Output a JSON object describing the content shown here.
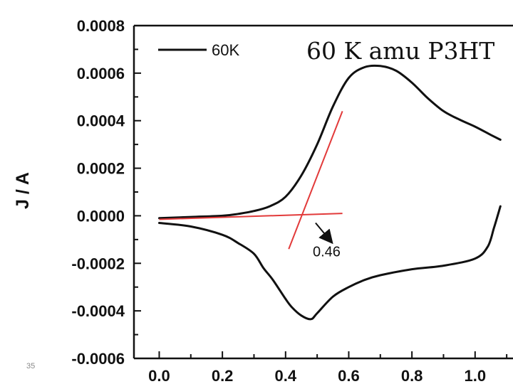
{
  "slide": {
    "number": "35"
  },
  "chart_data": {
    "type": "line",
    "title": "60 K amu P3HT",
    "xlabel": "",
    "ylabel": "J / A",
    "xlim": [
      -0.08,
      1.12
    ],
    "ylim": [
      -0.0006,
      0.0008
    ],
    "grid": false,
    "legend_position": "top-left",
    "x_ticks": [
      0.0,
      0.2,
      0.4,
      0.6,
      0.8,
      1.0
    ],
    "x_tick_labels": [
      "0.0",
      "0.2",
      "0.4",
      "0.6",
      "0.8",
      "1.0"
    ],
    "y_ticks": [
      0.0008,
      0.0006,
      0.0004,
      0.0002,
      0.0,
      -0.0002,
      -0.0004,
      -0.0006
    ],
    "y_tick_labels": [
      "0.0008",
      "0.0006",
      "0.0004",
      "0.0002",
      "0.0000",
      "-0.0002",
      "-0.0004",
      "-0.0006"
    ],
    "series": [
      {
        "name": "60K",
        "color": "#111111",
        "forward_scan": {
          "x": [
            0.0,
            0.1,
            0.2,
            0.25,
            0.3,
            0.35,
            0.4,
            0.45,
            0.5,
            0.55,
            0.6,
            0.65,
            0.7,
            0.75,
            0.8,
            0.85,
            0.9,
            0.95,
            1.0,
            1.05,
            1.08
          ],
          "y": [
            -1e-05,
            -5e-06,
            0.0,
            8e-06,
            2e-05,
            4e-05,
            8e-05,
            0.00017,
            0.0003,
            0.00046,
            0.00058,
            0.000625,
            0.00063,
            0.00061,
            0.00056,
            0.000495,
            0.00044,
            0.000405,
            0.000375,
            0.00034,
            0.00032
          ]
        },
        "reverse_scan": {
          "x": [
            1.08,
            1.06,
            1.04,
            1.0,
            0.9,
            0.8,
            0.7,
            0.65,
            0.6,
            0.55,
            0.5,
            0.48,
            0.45,
            0.42,
            0.4,
            0.36,
            0.33,
            0.3,
            0.25,
            0.2,
            0.1,
            0.0
          ],
          "y": [
            4e-05,
            -5e-05,
            -0.00013,
            -0.00018,
            -0.00021,
            -0.000225,
            -0.00025,
            -0.00027,
            -0.0003,
            -0.00034,
            -0.00041,
            -0.000435,
            -0.00042,
            -0.000385,
            -0.00035,
            -0.00027,
            -0.00022,
            -0.00016,
            -0.000115,
            -8e-05,
            -4.5e-05,
            -3e-05
          ]
        }
      }
    ],
    "tangent_lines": [
      {
        "color": "#e23a3a",
        "x": [
          0.0,
          0.58
        ],
        "y": [
          -1.5e-05,
          1e-05
        ]
      },
      {
        "color": "#e23a3a",
        "x": [
          0.41,
          0.58
        ],
        "y": [
          -0.00014,
          0.00044
        ]
      }
    ],
    "annotation": {
      "text": "0.46",
      "arrow_from": [
        0.495,
        -3e-05
      ],
      "arrow_to": [
        0.545,
        -0.00011
      ],
      "text_at": [
        0.53,
        -0.00017
      ]
    }
  }
}
